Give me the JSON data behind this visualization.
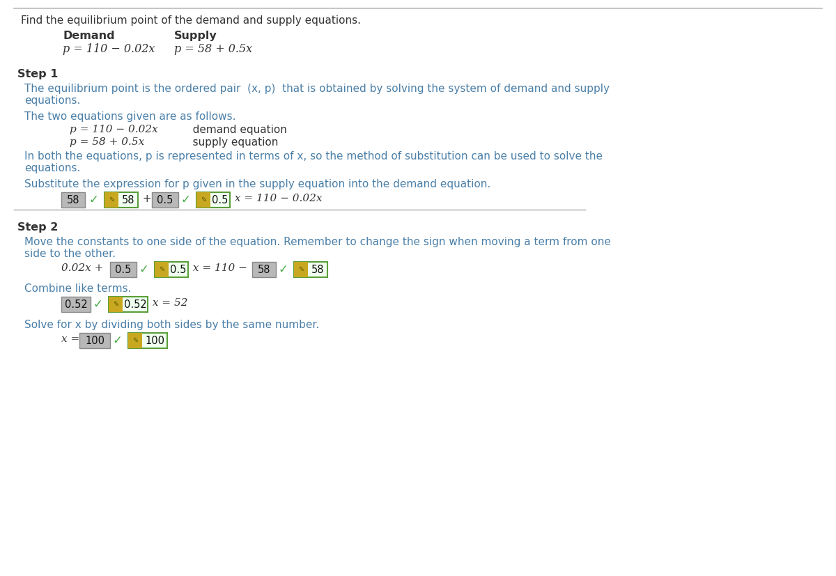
{
  "bg_color": "#ffffff",
  "text_color_blue": "#4a7fa8",
  "text_color_dark": "#333333",
  "top_line_color": "#bbbbbb",
  "divider_line_color": "#aaaaaa",
  "box_gray_bg": "#b8b8b8",
  "box_gray_border": "#888888",
  "box_green_border": "#5a9e3a",
  "box_green_bg": "#f0fff0",
  "box_icon_bg": "#c8a820",
  "checkmark_color": "#44aa44",
  "title": "Find the equilibrium point of the demand and supply equations.",
  "demand_label": "Demand",
  "supply_label": "Supply",
  "demand_eq": "p = 110 − 0.02x",
  "supply_eq": "p = 58 + 0.5x",
  "step1_label": "Step 1",
  "step2_label": "Step 2"
}
